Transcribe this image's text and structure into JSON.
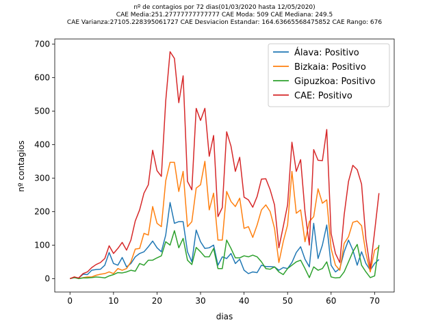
{
  "chart_data": {
    "type": "line",
    "title_lines": [
      "nº de contagios por 72 dias(01/03/2020 hasta 12/05/2020)",
      "CAE Media:251.27777777777777  CAE Moda: 509  CAE Mediana: 249.5",
      "CAE Varianza:27105.228395061727  CAE Desviacion Estandar: 164.63665568475852  CAE Rango: 676"
    ],
    "xlabel": "dias",
    "ylabel": "nº contagios",
    "xlim": [
      -3.5,
      74.5
    ],
    "ylim": [
      -40,
      715
    ],
    "xticks": [
      0,
      10,
      20,
      30,
      40,
      50,
      60,
      70
    ],
    "yticks": [
      0,
      100,
      200,
      300,
      400,
      500,
      600,
      700
    ],
    "grid": false,
    "legend_position": "top-right",
    "series": [
      {
        "name": "Álava: Positivo",
        "color": "#1f77b4",
        "values": [
          0,
          3,
          2,
          13,
          12,
          25,
          27,
          28,
          40,
          78,
          45,
          40,
          63,
          35,
          45,
          65,
          75,
          80,
          95,
          112,
          92,
          80,
          130,
          227,
          165,
          170,
          170,
          80,
          50,
          145,
          110,
          90,
          92,
          100,
          40,
          65,
          60,
          75,
          45,
          58,
          25,
          15,
          20,
          18,
          40,
          36,
          36,
          35,
          25,
          33,
          30,
          48,
          78,
          95,
          58,
          35,
          165,
          60,
          100,
          160,
          40,
          20,
          30,
          80,
          115,
          85,
          40,
          80,
          45,
          25,
          45,
          57
        ]
      },
      {
        "name": "Bizkaia: Positivo",
        "color": "#ff7f0e",
        "values": [
          0,
          5,
          0,
          3,
          5,
          5,
          10,
          13,
          15,
          20,
          15,
          30,
          25,
          30,
          50,
          88,
          90,
          135,
          130,
          215,
          165,
          155,
          292,
          347,
          347,
          260,
          320,
          155,
          170,
          270,
          280,
          350,
          205,
          255,
          115,
          115,
          260,
          230,
          215,
          240,
          150,
          155,
          123,
          160,
          205,
          220,
          200,
          150,
          48,
          110,
          160,
          320,
          195,
          205,
          110,
          170,
          185,
          268,
          225,
          235,
          90,
          40,
          25,
          105,
          125,
          168,
          172,
          158,
          75,
          20,
          85,
          95
        ]
      },
      {
        "name": "Gipuzkoa: Positivo",
        "color": "#2ca02c",
        "values": [
          0,
          3,
          0,
          2,
          2,
          3,
          5,
          4,
          2,
          8,
          12,
          18,
          17,
          20,
          25,
          22,
          45,
          40,
          55,
          55,
          62,
          68,
          110,
          100,
          143,
          92,
          120,
          55,
          42,
          93,
          80,
          65,
          65,
          90,
          30,
          30,
          115,
          90,
          62,
          62,
          68,
          65,
          70,
          65,
          50,
          30,
          28,
          35,
          20,
          12,
          30,
          40,
          50,
          55,
          30,
          3,
          35,
          25,
          30,
          50,
          5,
          2,
          3,
          20,
          50,
          80,
          102,
          40,
          20,
          3,
          8,
          100
        ]
      },
      {
        "name": "CAE: Positivo",
        "color": "#d62728",
        "values": [
          0,
          5,
          2,
          15,
          20,
          33,
          42,
          48,
          60,
          98,
          75,
          90,
          108,
          85,
          115,
          172,
          205,
          255,
          280,
          383,
          322,
          305,
          530,
          677,
          657,
          525,
          605,
          290,
          265,
          508,
          472,
          508,
          365,
          427,
          185,
          212,
          438,
          395,
          320,
          362,
          243,
          235,
          213,
          245,
          297,
          298,
          265,
          220,
          92,
          155,
          220,
          407,
          320,
          355,
          200,
          100,
          385,
          353,
          352,
          445,
          135,
          75,
          48,
          190,
          290,
          338,
          325,
          282,
          118,
          30,
          140,
          255
        ]
      }
    ]
  }
}
